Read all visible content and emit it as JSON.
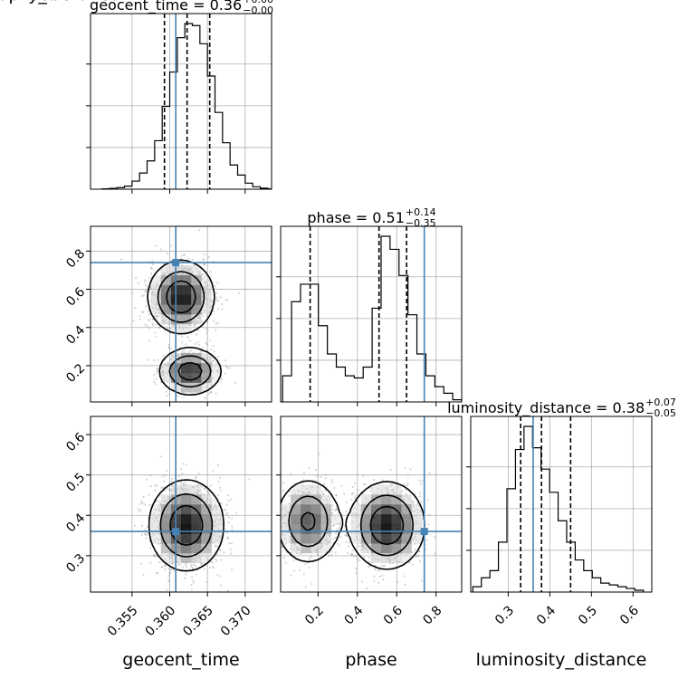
{
  "chart_data": {
    "type": "corner",
    "colors": {
      "truth": "#4682b4",
      "hist": "#000000",
      "grid": "#b0b0b0",
      "scatter": "#888888"
    },
    "parameters": [
      {
        "name": "geocent_time",
        "label": "geocent_time",
        "range": [
          0.3495,
          0.3735
        ],
        "ticks": [
          0.355,
          0.36,
          0.365,
          0.37
        ],
        "tick_labels": [
          "0.355",
          "0.360",
          "0.365",
          "0.370"
        ],
        "truth": 0.3608,
        "quantiles": [
          0.3593,
          0.3623,
          0.3653
        ]
      },
      {
        "name": "phase",
        "label": "phase",
        "range": [
          0.01,
          0.93
        ],
        "ticks": [
          0.2,
          0.4,
          0.6,
          0.8
        ],
        "tick_labels": [
          "0.2",
          "0.4",
          "0.6",
          "0.8"
        ],
        "truth": 0.74,
        "quantiles": [
          0.16,
          0.51,
          0.65
        ]
      },
      {
        "name": "luminosity_distance",
        "label": "luminosity_distance",
        "range": [
          0.21,
          0.645
        ],
        "ticks": [
          0.3,
          0.4,
          0.5,
          0.6
        ],
        "tick_labels": [
          "0.3",
          "0.4",
          "0.5",
          "0.6"
        ],
        "truth": 0.36,
        "quantiles": [
          0.33,
          0.38,
          0.45
        ]
      }
    ],
    "titles": [
      {
        "param": "geocent_time",
        "value": "0.36",
        "plus": "+0.00",
        "minus": "−0.00"
      },
      {
        "param": "phase",
        "value": "0.51",
        "plus": "+0.14",
        "minus": "−0.35"
      },
      {
        "param": "luminosity_distance",
        "value": "0.38",
        "plus": "+0.07",
        "minus": "−0.05"
      }
    ],
    "histograms": [
      {
        "param": "geocent_time",
        "start": 0.351,
        "width": 0.001,
        "values": [
          0.2,
          0.4,
          0.8,
          1.5,
          4,
          8,
          14,
          24,
          41,
          58,
          75,
          82,
          81,
          72,
          56,
          38,
          23,
          12,
          7,
          3,
          1.2,
          0.5,
          0.2
        ]
      },
      {
        "param": "phase",
        "start": 0.02,
        "width": 0.0455,
        "values": [
          12,
          46,
          54,
          54,
          35,
          22,
          16,
          12,
          11,
          16,
          43,
          76,
          70,
          58,
          40,
          22,
          12,
          7,
          4,
          1
        ]
      },
      {
        "param": "luminosity_distance",
        "start": 0.215,
        "width": 0.0205,
        "values": [
          3,
          8,
          12,
          28,
          58,
          80,
          93,
          81,
          69,
          56,
          40,
          28,
          18,
          12,
          8,
          5,
          4,
          3,
          2,
          1
        ]
      }
    ],
    "pairs": [
      {
        "x": "geocent_time",
        "y": "phase",
        "blobs": [
          {
            "cx": 0.3615,
            "cy": 0.56,
            "sx": 0.00195,
            "sy": 0.085,
            "w": 0.65
          },
          {
            "cx": 0.3627,
            "cy": 0.17,
            "sx": 0.00185,
            "sy": 0.055,
            "w": 0.35
          }
        ]
      },
      {
        "x": "geocent_time",
        "y": "luminosity_distance",
        "blobs": [
          {
            "cx": 0.3622,
            "cy": 0.375,
            "sx": 0.0022,
            "sy": 0.05,
            "w": 1.0
          }
        ]
      },
      {
        "x": "phase",
        "y": "luminosity_distance",
        "blobs": [
          {
            "cx": 0.15,
            "cy": 0.385,
            "sx": 0.075,
            "sy": 0.048,
            "w": 0.38
          },
          {
            "cx": 0.55,
            "cy": 0.375,
            "sx": 0.085,
            "sy": 0.048,
            "w": 0.62
          }
        ]
      }
    ]
  }
}
